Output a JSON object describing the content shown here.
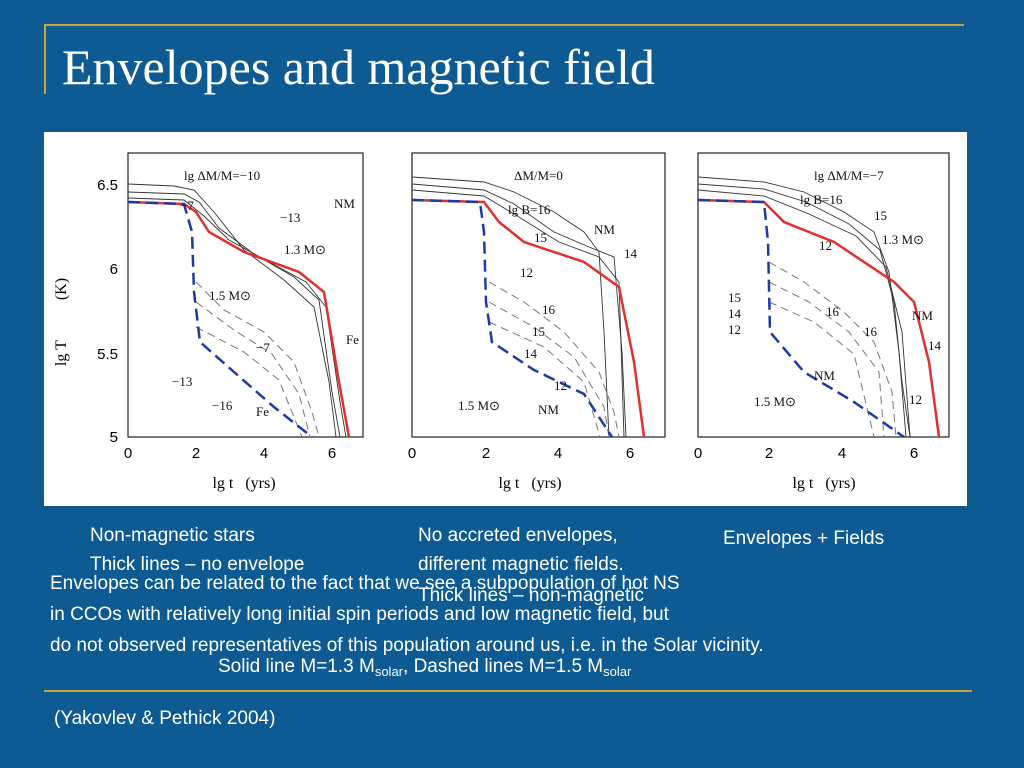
{
  "slide": {
    "title": "Envelopes and magnetic field",
    "captions": {
      "left_line1": "Non-magnetic stars",
      "left_line2": "Thick lines – no envelope",
      "middle_line1": "No accreted envelopes,",
      "middle_line2": "different magnetic fields.",
      "middle_line3": "Thick lines – non-magnetic",
      "right": "Envelopes + Fields"
    },
    "body_lines": [
      "Envelopes can be related to the fact that we see a subpopulation of hot NS",
      "in CCOs with relatively long initial spin periods and low magnetic field, but",
      "do not observed representatives of this population around us, i.e. in the Solar vicinity."
    ],
    "legend_line": {
      "prefix": "Solid line M=1.3 M",
      "sub1": "solar",
      "middle": ", Dashed lines M=1.5 M",
      "sub2": "solar"
    },
    "reference": "(Yakovlev & Pethick 2004)"
  },
  "figure": {
    "y_axis_label": "lg T",
    "y_axis_unit": "(K)",
    "x_axis_label": "lg t   (yrs)",
    "y_ticks": [
      "6.5",
      "6",
      "5.5",
      "5"
    ],
    "x_ticks": [
      "0",
      "2",
      "4",
      "6"
    ],
    "panels": [
      {
        "labels": {
          "header": "lg ΔM/M=−10",
          "m7": "−7",
          "m13": "−13",
          "nm": "NM",
          "m13sun": "1.3 M⊙",
          "m15sun": "1.5 M⊙",
          "fe_right": "Fe",
          "dm7": "−7",
          "dm13": "−13",
          "dm16": "−16",
          "fe_bottom": "Fe"
        }
      },
      {
        "labels": {
          "header": "ΔM/M=0",
          "b16": "lg B=16",
          "b15": "15",
          "nm": "NM",
          "b14": "14",
          "b12": "12",
          "d16": "16",
          "d15": "15",
          "d14": "14",
          "d12": "12",
          "m15sun": "1.5 M⊙",
          "dnm": "NM"
        }
      },
      {
        "labels": {
          "header": "lg ΔM/M=−7",
          "b16": "lg B=16",
          "b15": "15",
          "b12": "12",
          "m13sun": "1.3 M⊙",
          "l15": "15",
          "l14": "14",
          "l12": "12",
          "d16": "16",
          "v16": "16",
          "nm": "NM",
          "r14": "14",
          "dnm": "NM",
          "r12": "12",
          "m15sun": "1.5 M⊙"
        }
      }
    ]
  },
  "colors": {
    "background": "#0e5a93",
    "accent_gold": "#c9a43a",
    "solid_curve": "#e03030",
    "dashed_curve": "#1f3aa8"
  }
}
